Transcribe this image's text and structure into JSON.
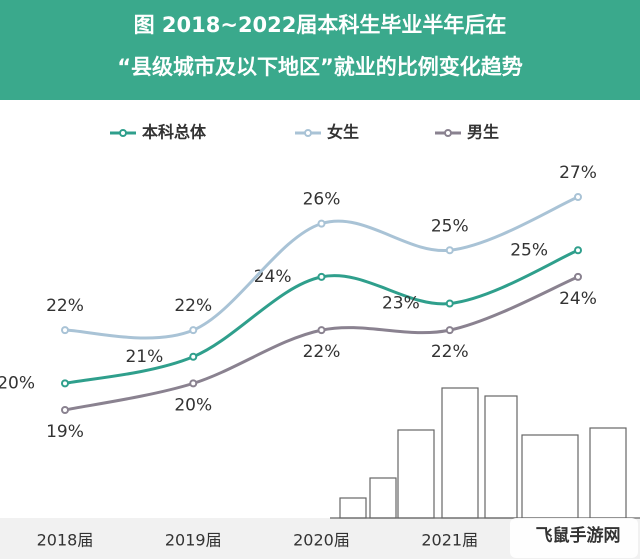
{
  "chart_data": {
    "type": "line",
    "title": "图  2018~2022届本科生毕业半年后在",
    "subtitle": "“县级城市及以下地区”就业的比例变化趋势",
    "categories": [
      "2018届",
      "2019届",
      "2020届",
      "2021届",
      null
    ],
    "series": [
      {
        "name": "本科总体",
        "color": "#2f9f8c",
        "values": [
          20,
          21,
          24,
          23,
          25
        ],
        "value_labels": [
          "20%",
          "21%",
          "24%",
          "23%",
          "25%"
        ]
      },
      {
        "name": "女生",
        "color": "#a9c3d6",
        "values": [
          22,
          22,
          26,
          25,
          27
        ],
        "value_labels": [
          "22%",
          "22%",
          "26%",
          "25%",
          "27%"
        ]
      },
      {
        "name": "男生",
        "color": "#8a8290",
        "values": [
          19,
          20,
          22,
          22,
          24
        ],
        "value_labels": [
          "19%",
          "20%",
          "22%",
          "22%",
          "24%"
        ]
      }
    ],
    "watermark": "飞鼠手游网"
  }
}
